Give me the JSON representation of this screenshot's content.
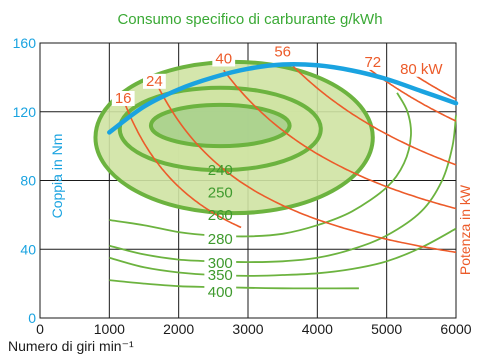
{
  "chart_data": {
    "type": "line",
    "title": "Consumo specifico di carburante g/kWh",
    "xlabel": "Numero di giri min⁻¹",
    "ylabel_left": "Coppia in Nm",
    "ylabel_right": "Potenza in kW",
    "xlim": [
      0,
      6000
    ],
    "ylim": [
      0,
      160
    ],
    "x_ticks": [
      0,
      1000,
      2000,
      3000,
      4000,
      5000,
      6000
    ],
    "y_ticks": [
      0,
      40,
      80,
      120,
      160
    ],
    "grid": true,
    "colors": {
      "torque_curve": "#1aa3e0",
      "consumption": "#6cb33f",
      "consumption_fill": "#cfe3a3",
      "consumption_fill_inner": "#a8d08d",
      "power": "#ec5b2a",
      "tick_left": "#1aa3e0",
      "tick_right": "#ec5b2a",
      "grid": "#1a1a1a"
    },
    "torque_curve": {
      "name": "",
      "x": [
        1000,
        1500,
        2000,
        2500,
        3000,
        3500,
        4000,
        4500,
        5000,
        5500,
        6000
      ],
      "y": [
        108,
        123,
        133,
        140,
        145,
        147.5,
        147,
        144,
        139,
        132,
        125
      ]
    },
    "consumption_contours": [
      {
        "label": "240",
        "label_x": 2600,
        "label_y": 86,
        "ellipse": {
          "cx": 2600,
          "cy": 112,
          "rx": 1000,
          "ry": 12
        }
      },
      {
        "label": "250",
        "label_x": 2600,
        "label_y": 73,
        "ellipse": {
          "cx": 2600,
          "cy": 110,
          "rx": 1450,
          "ry": 24
        }
      },
      {
        "label": "260",
        "label_x": 2600,
        "label_y": 60,
        "ellipse": {
          "cx": 2800,
          "cy": 105,
          "rx": 2000,
          "ry": 44
        }
      },
      {
        "label": "280",
        "label_x": 2600,
        "label_y": 46,
        "points": [
          [
            1000,
            57
          ],
          [
            1500,
            54
          ],
          [
            2000,
            50
          ],
          [
            2500,
            48
          ],
          [
            3000,
            47.5
          ],
          [
            3500,
            49
          ],
          [
            4000,
            54
          ],
          [
            4500,
            62
          ],
          [
            5000,
            76
          ],
          [
            5250,
            90
          ],
          [
            5350,
            106
          ],
          [
            5300,
            120
          ],
          [
            5150,
            131
          ]
        ]
      },
      {
        "label": "300",
        "label_x": 2600,
        "label_y": 32,
        "points": [
          [
            1000,
            42
          ],
          [
            1500,
            37
          ],
          [
            2000,
            34
          ],
          [
            2500,
            33
          ],
          [
            3000,
            32.5
          ],
          [
            3500,
            33
          ],
          [
            4000,
            35
          ],
          [
            4500,
            40
          ],
          [
            5000,
            48
          ],
          [
            5500,
            62
          ],
          [
            5800,
            80
          ],
          [
            5950,
            100
          ],
          [
            6000,
            118
          ]
        ]
      },
      {
        "label": "350",
        "label_x": 2600,
        "label_y": 25,
        "points": [
          [
            1000,
            35
          ],
          [
            1500,
            29.5
          ],
          [
            2000,
            26.5
          ],
          [
            2500,
            25
          ],
          [
            3000,
            24.5
          ],
          [
            3500,
            25
          ],
          [
            4000,
            26
          ],
          [
            4500,
            28.5
          ],
          [
            5000,
            33
          ],
          [
            5500,
            41
          ],
          [
            6000,
            52
          ]
        ]
      },
      {
        "label": "400",
        "label_x": 2600,
        "label_y": 15,
        "points": [
          [
            1000,
            22
          ],
          [
            1500,
            20
          ],
          [
            2000,
            18.5
          ],
          [
            2500,
            18
          ],
          [
            3000,
            17.6
          ],
          [
            3500,
            17.3
          ],
          [
            4000,
            17.2
          ],
          [
            4600,
            17.3
          ]
        ]
      }
    ],
    "power_curves": [
      {
        "label": "16",
        "label_x": 1200,
        "label_y": 128,
        "kw": 16,
        "x_range": [
          1200,
          2900
        ]
      },
      {
        "label": "24",
        "label_x": 1650,
        "label_y": 138,
        "kw": 24,
        "x_range": [
          1680,
          6000
        ]
      },
      {
        "label": "40",
        "label_x": 2650,
        "label_y": 151,
        "kw": 40,
        "x_range": [
          2650,
          6000
        ]
      },
      {
        "label": "56",
        "label_x": 3500,
        "label_y": 155,
        "kw": 56,
        "x_range": [
          3600,
          6000
        ]
      },
      {
        "label": "72",
        "label_x": 4800,
        "label_y": 149,
        "kw": 72,
        "x_range": [
          4750,
          6000
        ]
      },
      {
        "label": "80 kW",
        "label_x": 5500,
        "label_y": 145,
        "kw": 80,
        "x_range": [
          5300,
          6000
        ]
      }
    ]
  }
}
